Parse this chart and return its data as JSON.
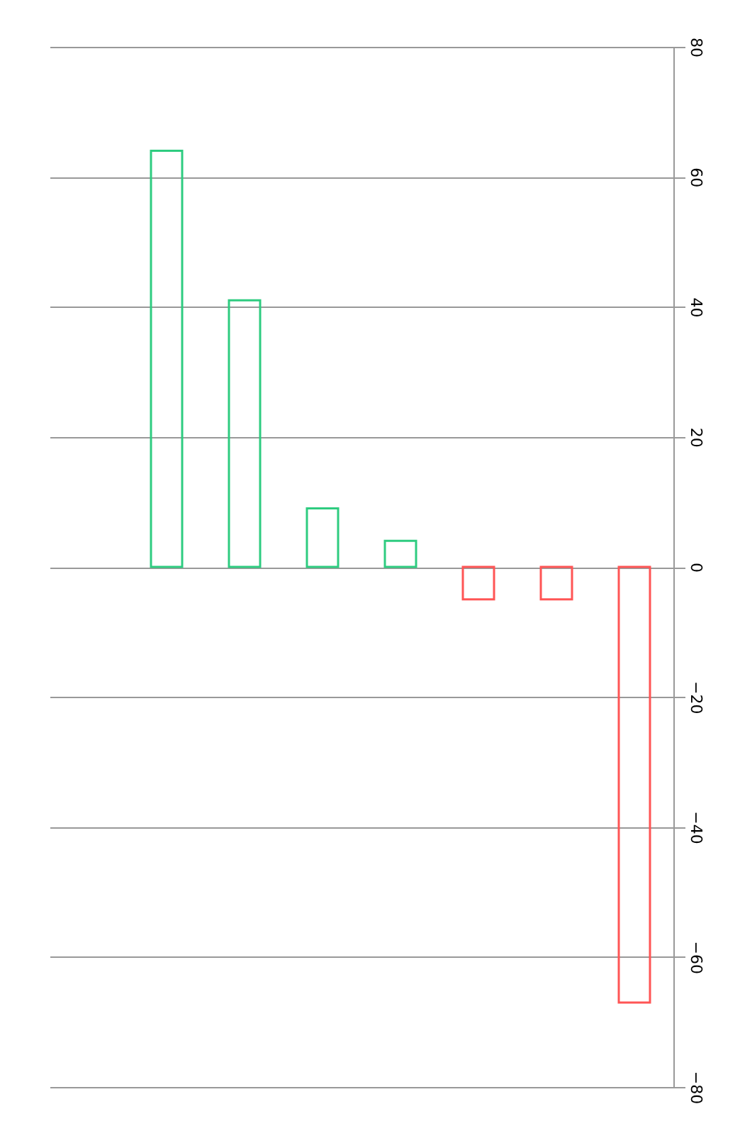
{
  "chart_data": {
    "type": "bar",
    "categories": [
      null,
      null,
      null,
      null,
      null,
      null,
      null,
      null
    ],
    "values": [
      null,
      64,
      41,
      9,
      4,
      -5,
      -5,
      -67
    ],
    "colors": [
      "#2ecc80",
      "#2ecc80",
      "#2ecc80",
      "#2ecc80",
      "#2ecc80",
      "#ff5555",
      "#ff5555",
      "#ff5555"
    ],
    "ylim": [
      -80,
      80
    ],
    "yticks": [
      -80,
      -60,
      -40,
      -20,
      0,
      20,
      40,
      60,
      80
    ],
    "grid": "y",
    "tick_labels": "y"
  }
}
